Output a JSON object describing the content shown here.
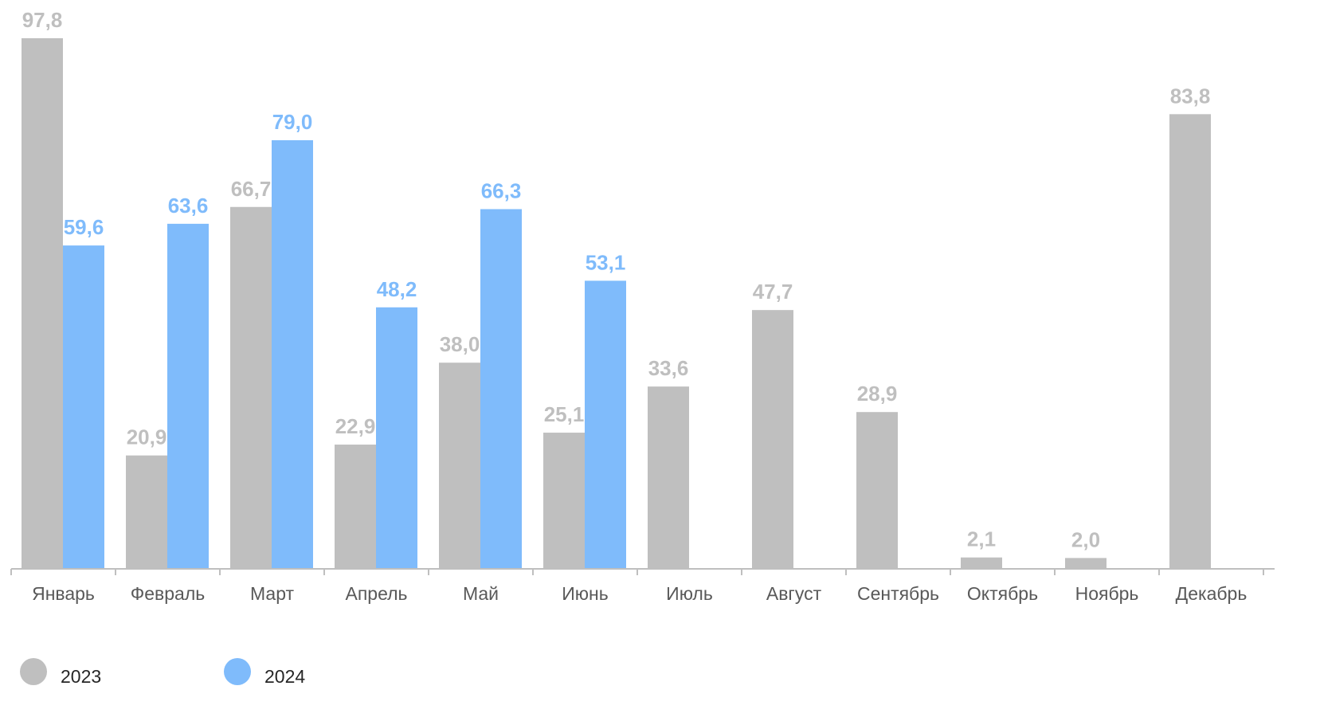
{
  "chart_data": {
    "type": "bar",
    "title": "",
    "xlabel": "",
    "ylabel": "",
    "ylim": [
      0,
      100
    ],
    "grid": false,
    "legend_position": "bottom-left",
    "categories": [
      "Январь",
      "Февраль",
      "Март",
      "Апрель",
      "Май",
      "Июнь",
      "Июль",
      "Август",
      "Сентябрь",
      "Октябрь",
      "Ноябрь",
      "Декабрь"
    ],
    "series": [
      {
        "name": "2023",
        "color": "#bfbfbf",
        "label_color": "#bfbfbf",
        "values": [
          97.8,
          20.9,
          66.7,
          22.9,
          38.0,
          25.1,
          33.6,
          47.7,
          28.9,
          2.1,
          2.0,
          83.8
        ],
        "labels": [
          "97,8",
          "20,9",
          "66,7",
          "22,9",
          "38,0",
          "25,1",
          "33,6",
          "47,7",
          "28,9",
          "2,1",
          "2,0",
          "83,8"
        ]
      },
      {
        "name": "2024",
        "color": "#7fbbfb",
        "label_color": "#7fbbfb",
        "values": [
          59.6,
          63.6,
          79.0,
          48.2,
          66.3,
          53.1,
          null,
          null,
          null,
          null,
          null,
          null
        ],
        "labels": [
          "59,6",
          "63,6",
          "79,0",
          "48,2",
          "66,3",
          "53,1",
          "",
          "",
          "",
          "",
          "",
          ""
        ]
      }
    ],
    "axis_color": "#bfbfbf"
  }
}
